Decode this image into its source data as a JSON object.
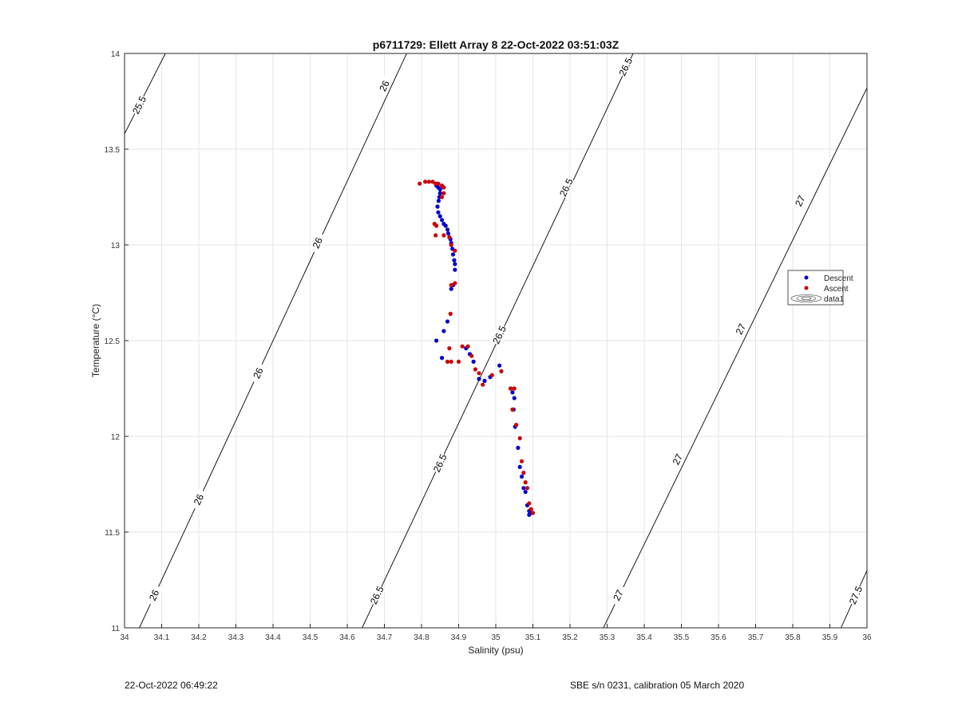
{
  "chart_data": {
    "type": "scatter",
    "title": "p6711729: Ellett Array 8 22-Oct-2022 03:51:03Z",
    "xlabel": "Salinity (psu)",
    "ylabel": "Temperature (°C)",
    "xlim": [
      34,
      36
    ],
    "ylim": [
      11,
      14
    ],
    "xticks": [
      "34",
      "34.1",
      "34.2",
      "34.3",
      "34.4",
      "34.5",
      "34.6",
      "34.7",
      "34.8",
      "34.9",
      "35",
      "35.1",
      "35.2",
      "35.3",
      "35.4",
      "35.5",
      "35.6",
      "35.7",
      "35.8",
      "35.9",
      "36"
    ],
    "yticks": [
      "11",
      "11.5",
      "12",
      "12.5",
      "13",
      "13.5",
      "14"
    ],
    "grid": true,
    "legend_position": "right",
    "legend": [
      "Descent",
      "Ascent",
      "data1"
    ],
    "series": [
      {
        "name": "Descent",
        "color": "#0000cc",
        "points": [
          [
            34.84,
            13.31
          ],
          [
            34.845,
            13.3
          ],
          [
            34.85,
            13.29
          ],
          [
            34.85,
            13.27
          ],
          [
            34.848,
            13.25
          ],
          [
            34.846,
            13.23
          ],
          [
            34.843,
            13.2
          ],
          [
            34.845,
            13.17
          ],
          [
            34.85,
            13.15
          ],
          [
            34.855,
            13.13
          ],
          [
            34.86,
            13.11
          ],
          [
            34.865,
            13.1
          ],
          [
            34.87,
            13.08
          ],
          [
            34.872,
            13.06
          ],
          [
            34.878,
            13.03
          ],
          [
            34.88,
            13.01
          ],
          [
            34.883,
            12.98
          ],
          [
            34.885,
            12.95
          ],
          [
            34.888,
            12.92
          ],
          [
            34.89,
            12.9
          ],
          [
            34.89,
            12.87
          ],
          [
            34.885,
            12.79
          ],
          [
            34.88,
            12.77
          ],
          [
            34.87,
            12.6
          ],
          [
            34.86,
            12.55
          ],
          [
            34.84,
            12.5
          ],
          [
            34.855,
            12.41
          ],
          [
            34.92,
            12.46
          ],
          [
            34.93,
            12.43
          ],
          [
            34.94,
            12.39
          ],
          [
            34.955,
            12.3
          ],
          [
            34.97,
            12.29
          ],
          [
            34.985,
            12.31
          ],
          [
            35.01,
            12.37
          ],
          [
            35.04,
            12.25
          ],
          [
            35.045,
            12.23
          ],
          [
            35.05,
            12.2
          ],
          [
            35.048,
            12.14
          ],
          [
            35.052,
            12.05
          ],
          [
            35.06,
            11.94
          ],
          [
            35.065,
            11.84
          ],
          [
            35.07,
            11.79
          ],
          [
            35.075,
            11.73
          ],
          [
            35.08,
            11.71
          ],
          [
            35.085,
            11.64
          ],
          [
            35.09,
            11.61
          ],
          [
            35.095,
            11.6
          ],
          [
            35.09,
            11.59
          ]
        ]
      },
      {
        "name": "Ascent",
        "color": "#cc0000",
        "points": [
          [
            34.795,
            13.32
          ],
          [
            34.81,
            13.33
          ],
          [
            34.82,
            13.33
          ],
          [
            34.83,
            13.33
          ],
          [
            34.838,
            13.32
          ],
          [
            34.845,
            13.32
          ],
          [
            34.855,
            13.31
          ],
          [
            34.86,
            13.3
          ],
          [
            34.86,
            13.27
          ],
          [
            34.855,
            13.25
          ],
          [
            34.835,
            13.11
          ],
          [
            34.84,
            13.1
          ],
          [
            34.838,
            13.05
          ],
          [
            34.86,
            13.05
          ],
          [
            34.875,
            13.04
          ],
          [
            34.88,
            13.0
          ],
          [
            34.89,
            12.97
          ],
          [
            34.89,
            12.8
          ],
          [
            34.88,
            12.79
          ],
          [
            34.878,
            12.64
          ],
          [
            34.875,
            12.46
          ],
          [
            34.87,
            12.39
          ],
          [
            34.88,
            12.39
          ],
          [
            34.9,
            12.39
          ],
          [
            34.91,
            12.47
          ],
          [
            34.925,
            12.47
          ],
          [
            34.935,
            12.42
          ],
          [
            34.945,
            12.35
          ],
          [
            34.955,
            12.33
          ],
          [
            34.965,
            12.27
          ],
          [
            34.99,
            12.32
          ],
          [
            35.015,
            12.34
          ],
          [
            35.04,
            12.25
          ],
          [
            35.05,
            12.25
          ],
          [
            35.045,
            12.14
          ],
          [
            35.055,
            12.06
          ],
          [
            35.065,
            11.99
          ],
          [
            35.07,
            11.87
          ],
          [
            35.075,
            11.81
          ],
          [
            35.08,
            11.76
          ],
          [
            35.085,
            11.73
          ],
          [
            35.09,
            11.65
          ],
          [
            35.095,
            11.62
          ],
          [
            35.1,
            11.6
          ]
        ]
      }
    ],
    "isopycnals": [
      {
        "label": "25.5",
        "points": [
          [
            34,
            13.58
          ],
          [
            34.11,
            14
          ]
        ],
        "label_at": [
          34.04,
          13.73
        ]
      },
      {
        "label": "26",
        "points": [
          [
            34.04,
            11
          ],
          [
            34.76,
            14
          ]
        ],
        "label_at": [
          34.08,
          11.17
        ]
      },
      {
        "label": "26.5",
        "points": [
          [
            34.64,
            11
          ],
          [
            35.37,
            14
          ]
        ],
        "label_at": [
          34.68,
          11.17
        ]
      },
      {
        "label": "27",
        "points": [
          [
            35.29,
            11
          ],
          [
            36,
            13.82
          ]
        ],
        "label_at": [
          35.33,
          11.17
        ]
      },
      {
        "label": "27.5",
        "points": [
          [
            35.93,
            11
          ],
          [
            36,
            11.3
          ]
        ],
        "label_at": [
          35.97,
          11.17
        ]
      }
    ],
    "isopycnal_labels": [
      {
        "text": "25.5",
        "at": [
          34.04,
          13.73
        ]
      },
      {
        "text": "26",
        "at": [
          34.08,
          11.17
        ]
      },
      {
        "text": "26",
        "at": [
          34.2,
          11.67
        ]
      },
      {
        "text": "26",
        "at": [
          34.36,
          12.33
        ]
      },
      {
        "text": "26",
        "at": [
          34.52,
          13.01
        ]
      },
      {
        "text": "26",
        "at": [
          34.7,
          13.83
        ]
      },
      {
        "text": "26.5",
        "at": [
          34.68,
          11.17
        ]
      },
      {
        "text": "26.5",
        "at": [
          34.85,
          11.86
        ]
      },
      {
        "text": "26.5",
        "at": [
          35.01,
          12.53
        ]
      },
      {
        "text": "26.5",
        "at": [
          35.19,
          13.3
        ]
      },
      {
        "text": "26.5",
        "at": [
          35.35,
          13.93
        ]
      },
      {
        "text": "27",
        "at": [
          35.33,
          11.17
        ]
      },
      {
        "text": "27",
        "at": [
          35.49,
          11.88
        ]
      },
      {
        "text": "27",
        "at": [
          35.66,
          12.56
        ]
      },
      {
        "text": "27",
        "at": [
          35.82,
          13.23
        ]
      },
      {
        "text": "27.5",
        "at": [
          35.97,
          11.17
        ]
      }
    ]
  },
  "footer": {
    "left": "22-Oct-2022 06:49:22",
    "right": "SBE s/n 0231, calibration 05 March 2020"
  },
  "colors": {
    "descent": "#0000cc",
    "ascent": "#cc0000",
    "grid": "#e6e6e6",
    "contour": "#000000"
  }
}
